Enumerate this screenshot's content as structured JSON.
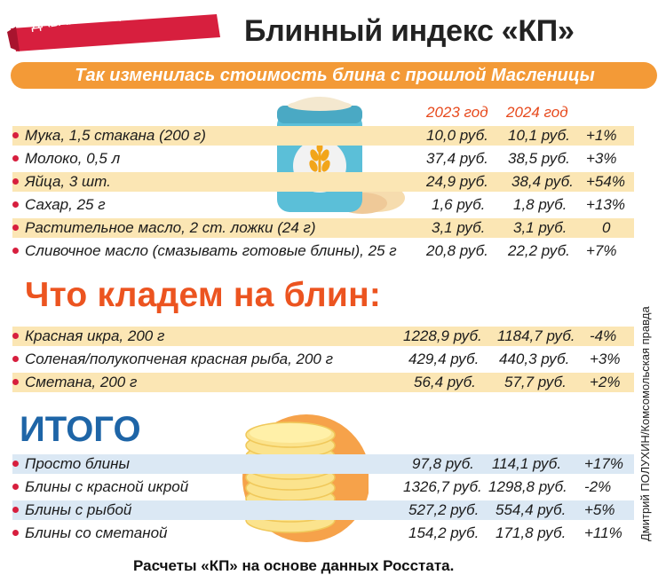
{
  "header": {
    "badge": "ДАВАЙТЕ ПОДСЧИТАЕМ",
    "title": "Блинный индекс «КП»",
    "subtitle": "Так изменилась стоимость блина с прошлой Масленицы"
  },
  "years": [
    "2023 год",
    "2024 год"
  ],
  "base_ingredients": [
    {
      "label": "Мука, 1,5 стакана (200 г)",
      "v2023": "10,0 руб.",
      "v2024": "10,1 руб.",
      "change": "+1%"
    },
    {
      "label": "Молоко, 0,5 л",
      "v2023": "37,4 руб.",
      "v2024": "38,5 руб.",
      "change": "+3%"
    },
    {
      "label": "Яйца, 3 шт.",
      "v2023": "24,9 руб.",
      "v2024": "38,4 руб.",
      "change": "+54%"
    },
    {
      "label": "Сахар, 25 г",
      "v2023": "1,6 руб.",
      "v2024": "1,8 руб.",
      "change": "+13%"
    },
    {
      "label": "Растительное масло, 2 ст. ложки (24 г)",
      "v2023": "3,1 руб.",
      "v2024": "3,1 руб.",
      "change": "0"
    },
    {
      "label": "Сливочное масло (смазывать готовые блины), 25 г",
      "v2023": "20,8 руб.",
      "v2024": "22,2 руб.",
      "change": "+7%"
    }
  ],
  "toppings_title": "Что кладем на блин:",
  "toppings": [
    {
      "label": "Красная икра, 200 г",
      "v2023": "1228,9 руб.",
      "v2024": "1184,7 руб.",
      "change": "-4%"
    },
    {
      "label": "Соленая/полукопченая красная рыба, 200 г",
      "v2023": "429,4 руб.",
      "v2024": "440,3 руб.",
      "change": "+3%"
    },
    {
      "label": "Сметана, 200 г",
      "v2023": "56,4 руб.",
      "v2024": "57,7 руб.",
      "change": "+2%"
    }
  ],
  "totals_title": "ИТОГО",
  "totals": [
    {
      "label": "Просто блины",
      "v2023": "97,8 руб.",
      "v2024": "114,1 руб.",
      "change": "+17%"
    },
    {
      "label": "Блины с красной икрой",
      "v2023": "1326,7 руб.",
      "v2024": "1298,8 руб.",
      "change": "-2%"
    },
    {
      "label": "Блины с рыбой",
      "v2023": "527,2 руб.",
      "v2024": "554,4 руб.",
      "change": "+5%"
    },
    {
      "label": "Блины со сметаной",
      "v2023": "154,2 руб.",
      "v2024": "171,8 руб.",
      "change": "+11%"
    }
  ],
  "footer": "Расчеты «КП» на основе данных Росстата.",
  "credit": "Дмитрий ПОЛУХИН/Комсомольская правда",
  "colors": {
    "accent_orange": "#ec5420",
    "bar_orange": "#f39a37",
    "row_yellow": "#fbe6b4",
    "row_blue": "#dbe8f4",
    "totals_blue": "#1e65a7",
    "badge_red": "#d71f3e"
  },
  "icons": [
    "flour-sack-icon",
    "wheat-icon",
    "pancake-stack-icon"
  ]
}
